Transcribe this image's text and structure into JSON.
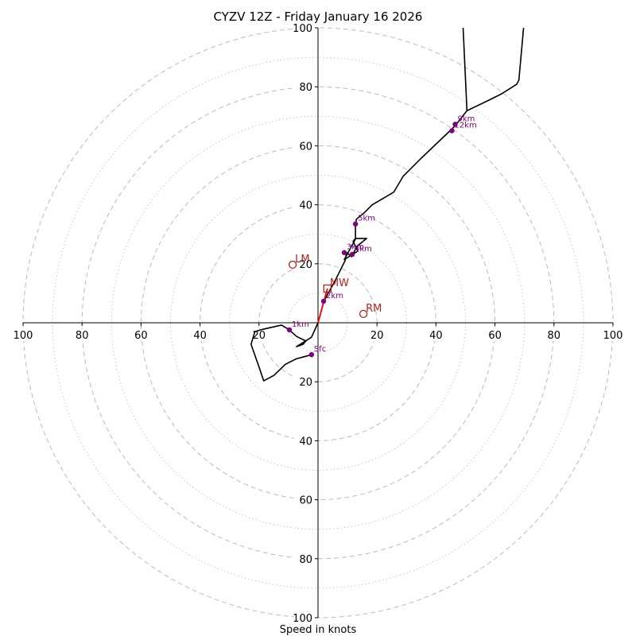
{
  "chart_data": {
    "type": "hodograph",
    "title": "CYZV 12Z - Friday January 16 2026",
    "xlabel": "Speed in knots",
    "axis_range": [
      -100,
      100
    ],
    "rings_major": [
      20,
      40,
      60,
      80,
      100
    ],
    "rings_minor": [
      10,
      30,
      50,
      70,
      90
    ],
    "ticks_x": [
      {
        "value": -100,
        "label": "100"
      },
      {
        "value": -80,
        "label": "80"
      },
      {
        "value": -60,
        "label": "60"
      },
      {
        "value": -40,
        "label": "40"
      },
      {
        "value": -20,
        "label": "20"
      },
      {
        "value": 20,
        "label": "20"
      },
      {
        "value": 40,
        "label": "40"
      },
      {
        "value": 60,
        "label": "60"
      },
      {
        "value": 80,
        "label": "80"
      },
      {
        "value": 100,
        "label": "100"
      }
    ],
    "ticks_y": [
      {
        "value": 100,
        "label": "100"
      },
      {
        "value": 80,
        "label": "80"
      },
      {
        "value": 60,
        "label": "60"
      },
      {
        "value": 40,
        "label": "40"
      },
      {
        "value": 20,
        "label": "20"
      },
      {
        "value": -20,
        "label": "20"
      },
      {
        "value": -40,
        "label": "40"
      },
      {
        "value": -60,
        "label": "60"
      },
      {
        "value": -80,
        "label": "80"
      },
      {
        "value": -100,
        "label": "100"
      }
    ],
    "trace": [
      [
        -2,
        -10.8
      ],
      [
        -7.3,
        -12.2
      ],
      [
        -11.1,
        -14.1
      ],
      [
        -14.9,
        -17.8
      ],
      [
        -18.4,
        -19.7
      ],
      [
        -20.3,
        -14.1
      ],
      [
        -22.7,
        -7.3
      ],
      [
        -21.4,
        -3.0
      ],
      [
        -18.7,
        -2.2
      ],
      [
        -12.4,
        -0.8
      ],
      [
        -10,
        -2.2
      ],
      [
        -7.3,
        -4.6
      ],
      [
        -4.1,
        -6.2
      ],
      [
        -5.1,
        -7.3
      ],
      [
        -7.3,
        -8.1
      ],
      [
        -2.2,
        -4.9
      ],
      [
        0,
        0
      ],
      [
        2,
        7.3
      ],
      [
        5.7,
        14.1
      ],
      [
        9.2,
        21.1
      ],
      [
        9.7,
        23.8
      ],
      [
        11.4,
        22.4
      ],
      [
        13.2,
        25.9
      ],
      [
        16.5,
        28.6
      ],
      [
        12.7,
        28.6
      ],
      [
        11.9,
        27.6
      ],
      [
        13.5,
        24.3
      ],
      [
        8.9,
        21.4
      ],
      [
        12.7,
        28.4
      ],
      [
        12.7,
        33.0
      ],
      [
        13.0,
        35.1
      ],
      [
        15.7,
        37.3
      ],
      [
        18.4,
        40.0
      ],
      [
        25.7,
        44.3
      ],
      [
        28.9,
        49.7
      ],
      [
        35.1,
        55.9
      ],
      [
        45.4,
        65.7
      ],
      [
        46.5,
        66.8
      ],
      [
        50.5,
        71.9
      ],
      [
        57.8,
        75.4
      ],
      [
        62.2,
        77.6
      ],
      [
        67.3,
        80.8
      ],
      [
        68.1,
        82.2
      ],
      [
        69.7,
        100
      ]
    ],
    "trace_branch": [
      [
        50.5,
        71.9
      ],
      [
        49.2,
        100
      ]
    ],
    "mean_wind_segment": [
      [
        0,
        0
      ],
      [
        3.2,
        11.6
      ]
    ],
    "height_markers": [
      {
        "label": "Sfc",
        "u": -2.2,
        "v": -10.8
      },
      {
        "label": "1km",
        "u": -9.7,
        "v": -2.4
      },
      {
        "label": "2km",
        "u": 1.9,
        "v": 7.3
      },
      {
        "label": "3km",
        "u": 8.9,
        "v": 23.8
      },
      {
        "label": "4km",
        "u": 11.6,
        "v": 23.2
      },
      {
        "label": "5km",
        "u": 12.7,
        "v": 33.5
      },
      {
        "label": "9km",
        "u": 46.5,
        "v": 67.3
      },
      {
        "label": "12km",
        "u": 45.4,
        "v": 65.1
      }
    ],
    "motion_markers": [
      {
        "label": "LM",
        "u": -8.6,
        "v": 19.7,
        "symbol": "circle"
      },
      {
        "label": "MW",
        "u": 3.2,
        "v": 11.6,
        "symbol": "square"
      },
      {
        "label": "RM",
        "u": 15.4,
        "v": 3.0,
        "symbol": "circle"
      }
    ],
    "colors": {
      "trace": "#000000",
      "marker": "#800080",
      "motion": "#b22222",
      "mean_wind": "#ff0000",
      "grid": "#bbbbbb"
    }
  }
}
